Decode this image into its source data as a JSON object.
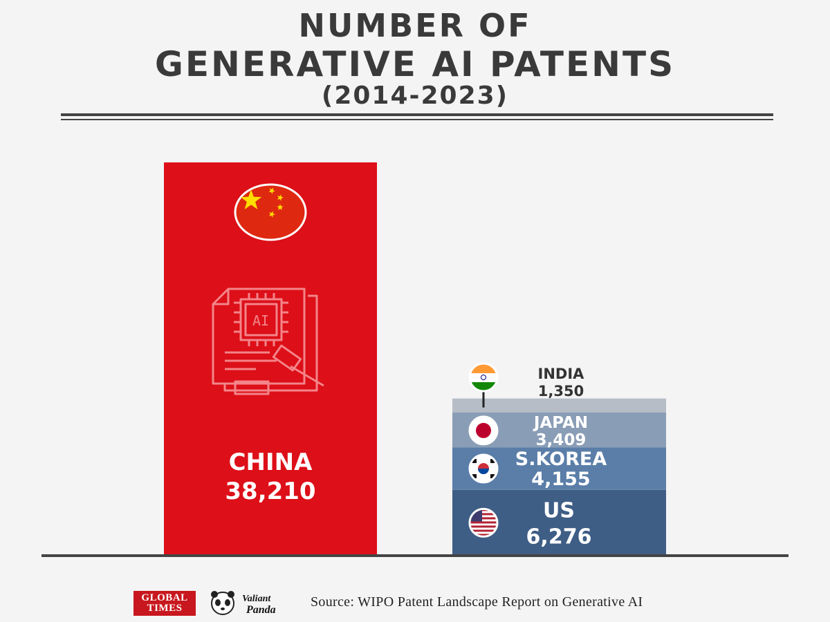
{
  "header": {
    "title_line1": "NUMBER OF",
    "title_line2": "GENERATIVE AI PATENTS",
    "period": "(2014-2023)"
  },
  "chart_data": {
    "type": "bar",
    "title": "NUMBER OF GENERATIVE AI PATENTS (2014-2023)",
    "categories": [
      "CHINA",
      "US",
      "S.KOREA",
      "JAPAN",
      "INDIA"
    ],
    "values": [
      38210,
      6276,
      4155,
      3409,
      1350
    ],
    "value_labels": [
      "38,210",
      "6,276",
      "4,155",
      "3,409",
      "1,350"
    ],
    "layout_note": "China drawn as its own bar; US, S.KOREA, JAPAN, INDIA stacked in a single second bar",
    "colors": {
      "CHINA": "#dd0f18",
      "US": "#3f5e86",
      "S.KOREA": "#5a7ea8",
      "JAPAN": "#8a9db6",
      "INDIA": "#b6bdc7"
    },
    "flags": {
      "CHINA": "china-flag-icon",
      "US": "us-flag-icon",
      "S.KOREA": "south-korea-flag-icon",
      "JAPAN": "japan-flag-icon",
      "INDIA": "india-flag-icon"
    },
    "center_icon": "ai-patent-document-gavel-icon",
    "grid": false,
    "legend": "none"
  },
  "footer": {
    "logo1_line1": "GLOBAL",
    "logo1_line2": "TIMES",
    "logo2_line1": "Valiant",
    "logo2_line2": "Panda",
    "source": "Source: WIPO Patent Landscape Report on Generative AI"
  }
}
